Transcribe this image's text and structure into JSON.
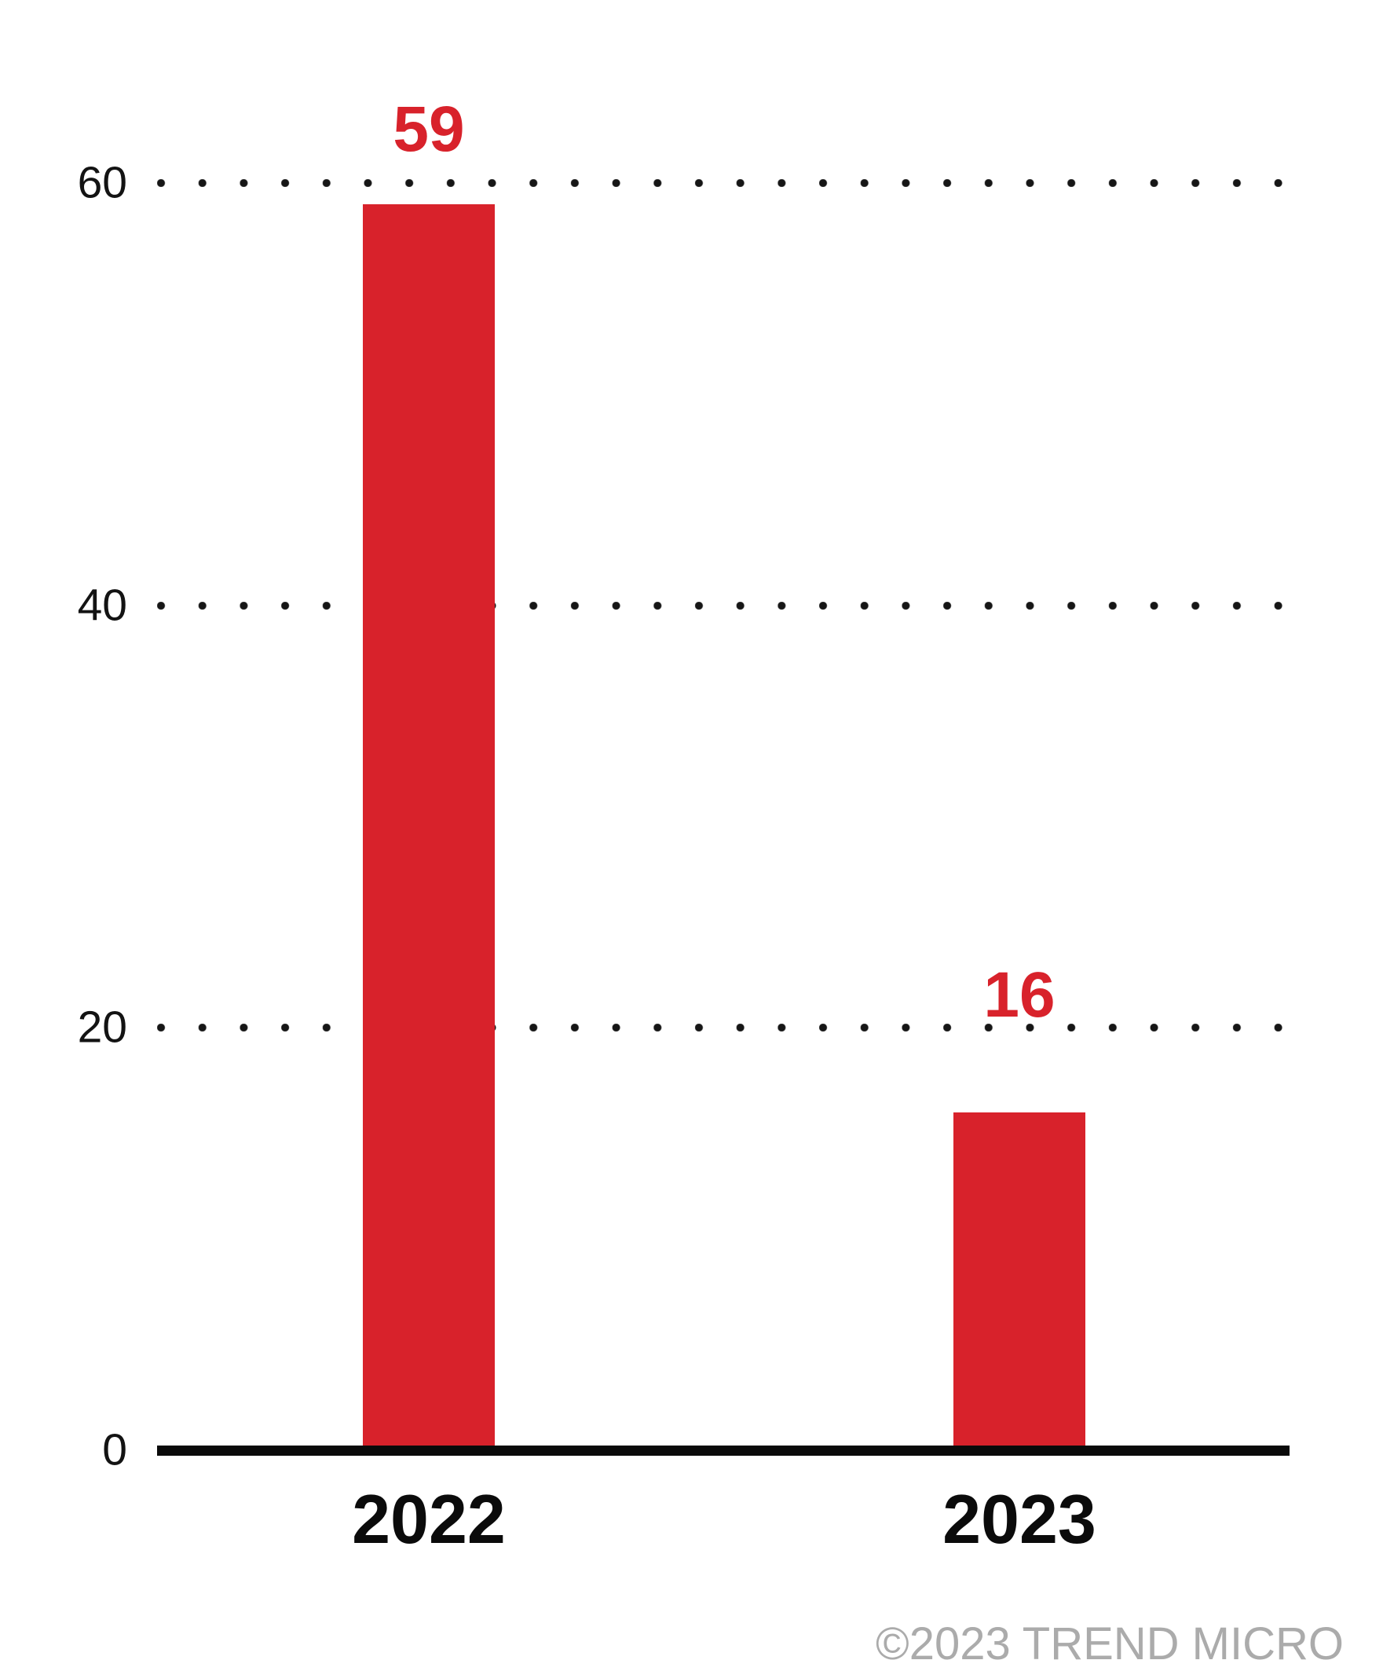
{
  "chart_data": {
    "type": "bar",
    "categories": [
      "2022",
      "2023"
    ],
    "values": [
      59,
      16
    ],
    "title": "",
    "xlabel": "",
    "ylabel": "",
    "ylim": [
      0,
      60
    ],
    "yticks": [
      0,
      20,
      40,
      60
    ],
    "gridline_values": [
      60,
      40,
      20
    ],
    "grid_style": "dotted",
    "legend": "none",
    "bar_color": "#D8222B",
    "value_label_color": "#D8222B"
  },
  "footer": {
    "copyright": "©2023 TREND MICRO",
    "color": "#ABABAB"
  },
  "colors": {
    "background": "#FFFFFF",
    "axis": "#0A0A0A",
    "tick_label": "#131313",
    "grid_dot": "#161616"
  }
}
